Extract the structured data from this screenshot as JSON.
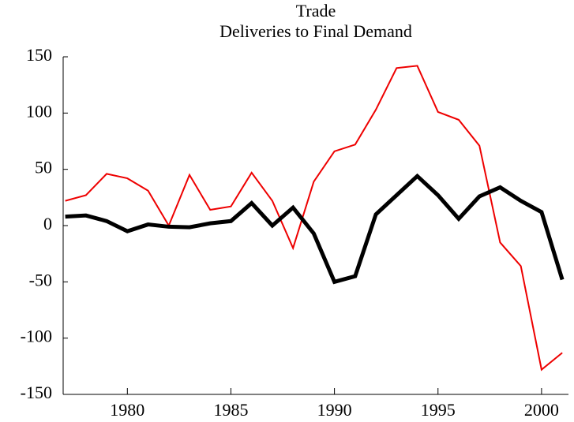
{
  "chart_data": {
    "type": "line",
    "title": [
      "Trade",
      "Deliveries to Final Demand"
    ],
    "x": [
      1977,
      1978,
      1979,
      1980,
      1981,
      1982,
      1983,
      1984,
      1985,
      1986,
      1987,
      1988,
      1989,
      1990,
      1991,
      1992,
      1993,
      1994,
      1995,
      1996,
      1997,
      1998,
      1999,
      2000,
      2001
    ],
    "series": [
      {
        "color": "#ee0000",
        "width": 2,
        "values": [
          22,
          27,
          46,
          42,
          31,
          0,
          45,
          14,
          17,
          47,
          22,
          -20,
          39,
          66,
          72,
          103,
          140,
          142,
          101,
          94,
          71,
          -15,
          -36,
          -128,
          -113
        ]
      },
      {
        "color": "#000000",
        "width": 5,
        "values": [
          8,
          9,
          4,
          -5,
          1,
          -1,
          -1.5,
          2,
          4,
          20,
          0,
          16,
          -7,
          -50,
          -45,
          10,
          27,
          44,
          27,
          6,
          26,
          34,
          22,
          12,
          -48
        ]
      }
    ],
    "xlim": [
      1976.9,
      2001.3
    ],
    "xticks": [
      1980,
      1985,
      1990,
      1995,
      2000
    ],
    "ylim": [
      -150,
      150
    ],
    "yticks": [
      -150,
      -100,
      -50,
      0,
      50,
      100,
      150
    ]
  }
}
